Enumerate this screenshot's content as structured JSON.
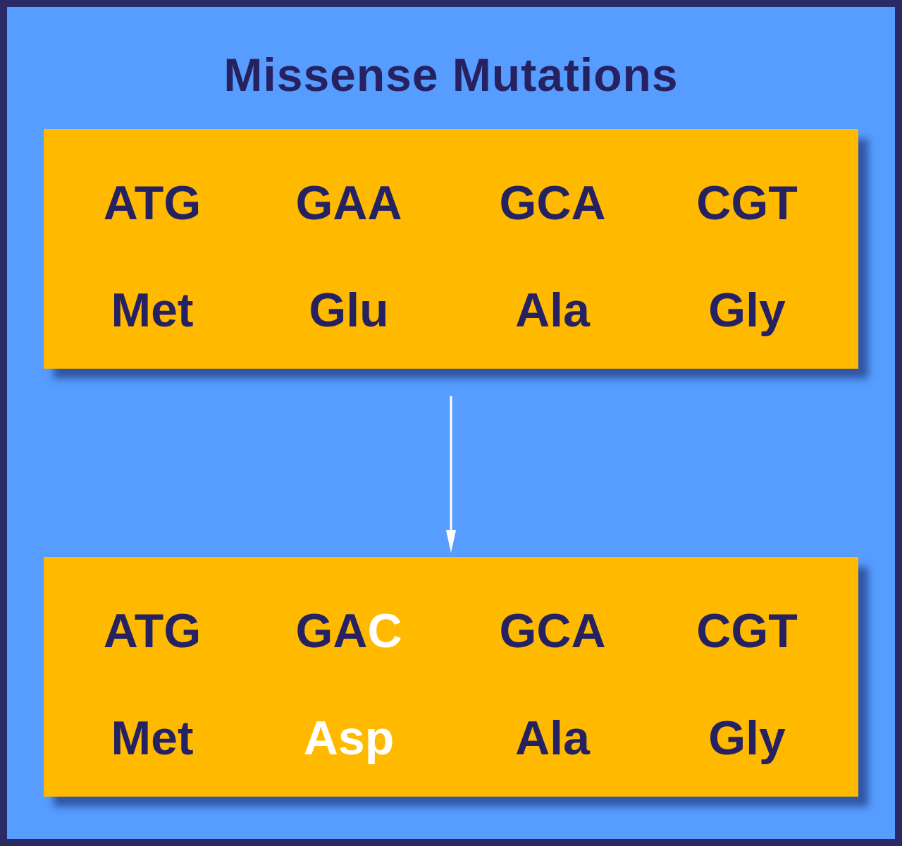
{
  "title": "Missense Mutations",
  "colors": {
    "background": "#569dff",
    "frame": "#2a2a66",
    "panel": "#ffba00",
    "text": "#262262",
    "mutation_highlight": "#ffffff",
    "arrow": "#ffffff"
  },
  "original": {
    "codons": [
      "ATG",
      "GAA",
      "GCA",
      "CGT"
    ],
    "amino_acids": [
      "Met",
      "Glu",
      "Ala",
      "Gly"
    ]
  },
  "mutated": {
    "codons": [
      {
        "unchanged": "ATG",
        "changed": ""
      },
      {
        "unchanged": "GA",
        "changed": "C"
      },
      {
        "unchanged": "GCA",
        "changed": ""
      },
      {
        "unchanged": "CGT",
        "changed": ""
      }
    ],
    "amino_acids": [
      "Met",
      "Asp",
      "Ala",
      "Gly"
    ]
  },
  "arrow_icon": "down-arrow-icon"
}
